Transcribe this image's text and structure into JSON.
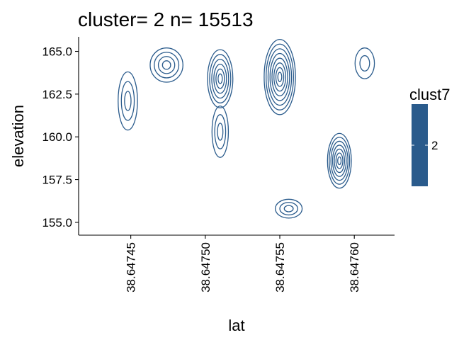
{
  "chart_data": {
    "type": "contour",
    "title": "cluster= 2 n= 15513",
    "xlabel": "lat",
    "ylabel": "elevation",
    "xlim": [
      38.647415,
      38.647627
    ],
    "ylim": [
      154.25,
      165.85
    ],
    "xticks": [
      {
        "value": 38.64745,
        "label": "38.64745"
      },
      {
        "value": 38.6475,
        "label": "38.64750"
      },
      {
        "value": 38.64755,
        "label": "38.64755"
      },
      {
        "value": 38.6476,
        "label": "38.64760"
      }
    ],
    "yticks": [
      {
        "value": 155.0,
        "label": "155.0"
      },
      {
        "value": 157.5,
        "label": "157.5"
      },
      {
        "value": 160.0,
        "label": "160.0"
      },
      {
        "value": 162.5,
        "label": "162.5"
      },
      {
        "value": 165.0,
        "label": "165.0"
      }
    ],
    "series": [
      {
        "name": "2",
        "color": "#2a5b8c"
      }
    ],
    "peaks": [
      {
        "x": 38.647448,
        "y": 162.1,
        "levels": 3,
        "rx": 6.5e-06,
        "ry": 1.7
      },
      {
        "x": 38.647474,
        "y": 164.2,
        "levels": 4,
        "rx": 1.1e-05,
        "ry": 1.0
      },
      {
        "x": 38.64751,
        "y": 163.4,
        "levels": 6,
        "rx": 8.5e-06,
        "ry": 1.7
      },
      {
        "x": 38.64751,
        "y": 160.3,
        "levels": 3,
        "rx": 5.5e-06,
        "ry": 1.5
      },
      {
        "x": 38.64755,
        "y": 163.5,
        "levels": 8,
        "rx": 1.05e-05,
        "ry": 2.2
      },
      {
        "x": 38.64759,
        "y": 158.6,
        "levels": 7,
        "rx": 8e-06,
        "ry": 1.6
      },
      {
        "x": 38.647556,
        "y": 155.8,
        "levels": 3,
        "rx": 9e-06,
        "ry": 0.55
      },
      {
        "x": 38.647607,
        "y": 164.3,
        "levels": 2,
        "rx": 6.5e-06,
        "ry": 0.9
      }
    ],
    "legend": {
      "title": "clust7",
      "entries": [
        {
          "label": "2",
          "color": "#2a5b8c"
        }
      ],
      "position": "right"
    },
    "grid": false
  }
}
